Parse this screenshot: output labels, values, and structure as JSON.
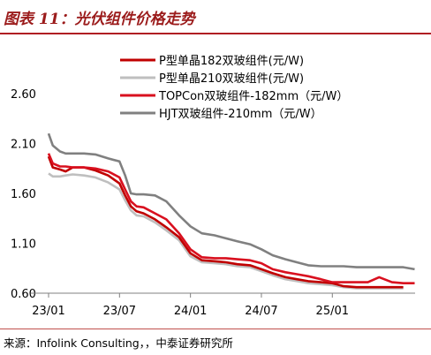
{
  "title": "图表 11：光伏组件价格走势",
  "source": "来源：Infolink Consulting，，中泰证券研究所",
  "chart_data": {
    "type": "line",
    "x_ticks": [
      "23/01",
      "23/07",
      "24/01",
      "24/07",
      "25/01"
    ],
    "xlim": [
      "2023-01",
      "2025-08"
    ],
    "ylim": [
      0.6,
      2.6
    ],
    "y_ticks": [
      "2.60",
      "2.10",
      "1.60",
      "1.10",
      "0.60"
    ],
    "grid": false,
    "legend_position": "top-right",
    "series": [
      {
        "name": "P型单晶182双玻组件(元/W)",
        "color": "#c00000",
        "points": [
          [
            2023.0,
            1.97
          ],
          [
            2023.03,
            1.86
          ],
          [
            2023.08,
            1.84
          ],
          [
            2023.12,
            1.82
          ],
          [
            2023.17,
            1.86
          ],
          [
            2023.25,
            1.86
          ],
          [
            2023.33,
            1.83
          ],
          [
            2023.42,
            1.78
          ],
          [
            2023.5,
            1.7
          ],
          [
            2023.54,
            1.58
          ],
          [
            2023.58,
            1.47
          ],
          [
            2023.62,
            1.42
          ],
          [
            2023.67,
            1.4
          ],
          [
            2023.75,
            1.34
          ],
          [
            2023.83,
            1.26
          ],
          [
            2023.92,
            1.16
          ],
          [
            2024.0,
            1.0
          ],
          [
            2024.08,
            0.93
          ],
          [
            2024.17,
            0.92
          ],
          [
            2024.25,
            0.91
          ],
          [
            2024.33,
            0.89
          ],
          [
            2024.42,
            0.88
          ],
          [
            2024.5,
            0.84
          ],
          [
            2024.58,
            0.8
          ],
          [
            2024.67,
            0.76
          ],
          [
            2024.75,
            0.74
          ],
          [
            2024.83,
            0.72
          ],
          [
            2024.92,
            0.71
          ],
          [
            2025.0,
            0.7
          ],
          [
            2025.08,
            0.67
          ],
          [
            2025.17,
            0.66
          ],
          [
            2025.25,
            0.66
          ],
          [
            2025.33,
            0.66
          ],
          [
            2025.42,
            0.66
          ],
          [
            2025.5,
            0.66
          ]
        ]
      },
      {
        "name": "P型单晶210双玻组件(元/W)",
        "color": "#bfbfbf",
        "points": [
          [
            2023.0,
            1.8
          ],
          [
            2023.03,
            1.77
          ],
          [
            2023.08,
            1.77
          ],
          [
            2023.12,
            1.78
          ],
          [
            2023.17,
            1.79
          ],
          [
            2023.25,
            1.78
          ],
          [
            2023.33,
            1.76
          ],
          [
            2023.42,
            1.71
          ],
          [
            2023.5,
            1.64
          ],
          [
            2023.54,
            1.53
          ],
          [
            2023.58,
            1.43
          ],
          [
            2023.62,
            1.38
          ],
          [
            2023.67,
            1.37
          ],
          [
            2023.75,
            1.31
          ],
          [
            2023.83,
            1.23
          ],
          [
            2023.92,
            1.13
          ],
          [
            2024.0,
            0.97
          ],
          [
            2024.08,
            0.91
          ],
          [
            2024.17,
            0.9
          ],
          [
            2024.25,
            0.89
          ],
          [
            2024.33,
            0.87
          ],
          [
            2024.42,
            0.86
          ],
          [
            2024.5,
            0.82
          ],
          [
            2024.58,
            0.78
          ],
          [
            2024.67,
            0.74
          ],
          [
            2024.75,
            0.72
          ],
          [
            2024.83,
            0.7
          ],
          [
            2024.92,
            0.69
          ],
          [
            2025.0,
            0.68
          ],
          [
            2025.08,
            0.66
          ],
          [
            2025.17,
            0.65
          ],
          [
            2025.25,
            0.65
          ],
          [
            2025.33,
            0.65
          ],
          [
            2025.42,
            0.65
          ],
          [
            2025.5,
            0.65
          ]
        ]
      },
      {
        "name": "TOPCon双玻组件-182mm（元/W）",
        "color": "#d9101f",
        "points": [
          [
            2023.0,
            2.0
          ],
          [
            2023.03,
            1.9
          ],
          [
            2023.08,
            1.87
          ],
          [
            2023.12,
            1.87
          ],
          [
            2023.17,
            1.86
          ],
          [
            2023.25,
            1.86
          ],
          [
            2023.33,
            1.85
          ],
          [
            2023.42,
            1.82
          ],
          [
            2023.5,
            1.76
          ],
          [
            2023.54,
            1.64
          ],
          [
            2023.58,
            1.52
          ],
          [
            2023.62,
            1.47
          ],
          [
            2023.67,
            1.46
          ],
          [
            2023.75,
            1.4
          ],
          [
            2023.83,
            1.34
          ],
          [
            2023.92,
            1.2
          ],
          [
            2024.0,
            1.04
          ],
          [
            2024.08,
            0.96
          ],
          [
            2024.17,
            0.95
          ],
          [
            2024.25,
            0.95
          ],
          [
            2024.33,
            0.94
          ],
          [
            2024.42,
            0.93
          ],
          [
            2024.5,
            0.9
          ],
          [
            2024.58,
            0.84
          ],
          [
            2024.67,
            0.81
          ],
          [
            2024.75,
            0.79
          ],
          [
            2024.83,
            0.77
          ],
          [
            2024.92,
            0.74
          ],
          [
            2025.0,
            0.71
          ],
          [
            2025.08,
            0.71
          ],
          [
            2025.17,
            0.71
          ],
          [
            2025.25,
            0.71
          ],
          [
            2025.33,
            0.76
          ],
          [
            2025.42,
            0.71
          ],
          [
            2025.5,
            0.7
          ],
          [
            2025.58,
            0.7
          ]
        ]
      },
      {
        "name": "HJT双玻组件-210mm（元/W）",
        "color": "#808080",
        "points": [
          [
            2023.0,
            2.2
          ],
          [
            2023.03,
            2.08
          ],
          [
            2023.08,
            2.02
          ],
          [
            2023.12,
            2.0
          ],
          [
            2023.17,
            2.0
          ],
          [
            2023.25,
            2.0
          ],
          [
            2023.33,
            1.99
          ],
          [
            2023.42,
            1.95
          ],
          [
            2023.5,
            1.92
          ],
          [
            2023.54,
            1.78
          ],
          [
            2023.58,
            1.6
          ],
          [
            2023.62,
            1.59
          ],
          [
            2023.67,
            1.59
          ],
          [
            2023.75,
            1.58
          ],
          [
            2023.83,
            1.52
          ],
          [
            2023.92,
            1.38
          ],
          [
            2024.0,
            1.27
          ],
          [
            2024.08,
            1.2
          ],
          [
            2024.17,
            1.18
          ],
          [
            2024.25,
            1.15
          ],
          [
            2024.33,
            1.12
          ],
          [
            2024.42,
            1.09
          ],
          [
            2024.5,
            1.04
          ],
          [
            2024.58,
            0.98
          ],
          [
            2024.67,
            0.94
          ],
          [
            2024.75,
            0.91
          ],
          [
            2024.83,
            0.88
          ],
          [
            2024.92,
            0.87
          ],
          [
            2025.0,
            0.87
          ],
          [
            2025.08,
            0.87
          ],
          [
            2025.17,
            0.86
          ],
          [
            2025.25,
            0.86
          ],
          [
            2025.33,
            0.86
          ],
          [
            2025.42,
            0.86
          ],
          [
            2025.5,
            0.86
          ],
          [
            2025.58,
            0.84
          ]
        ]
      }
    ]
  }
}
